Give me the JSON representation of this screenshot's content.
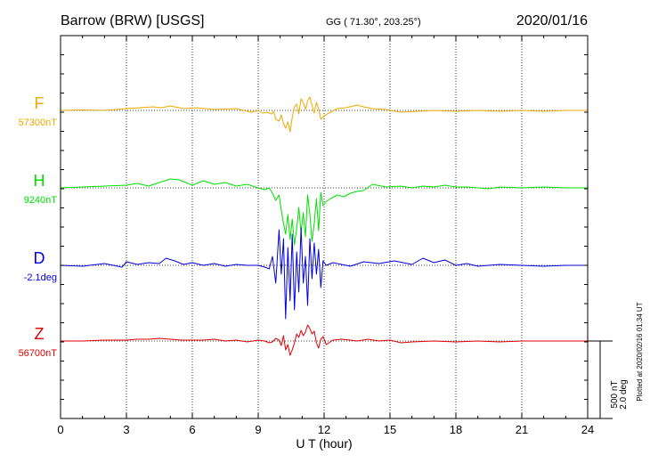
{
  "header": {
    "station": "Barrow (BRW)  [USGS]",
    "coords": "GG ( 71.30°, 203.25°)",
    "date": "2020/01/16"
  },
  "scale_note": {
    "line1": "500 nT",
    "line2": "2.0 deg"
  },
  "plotted_note": "Plotted at 2020/02/16 01:34 UT",
  "chart_data": {
    "type": "line",
    "title": "Barrow (BRW)  [USGS]",
    "xlabel": "U T (hour)",
    "ylabel": "",
    "xlim": [
      0,
      24
    ],
    "x_ticks": [
      "0",
      "3",
      "6",
      "9",
      "12",
      "15",
      "18",
      "21",
      "24"
    ],
    "grid": true,
    "series": [
      {
        "name": "F",
        "baseline_label": "57300nT",
        "color": "#f0a800",
        "x": [
          0,
          1,
          2,
          3,
          3.6,
          4.2,
          4.6,
          5,
          5.6,
          6.2,
          7,
          8,
          8.7,
          9,
          9.2,
          9.4,
          9.6,
          9.7,
          9.8,
          9.95,
          10.05,
          10.15,
          10.25,
          10.35,
          10.45,
          10.55,
          10.65,
          10.75,
          10.85,
          10.95,
          11.05,
          11.15,
          11.25,
          11.35,
          11.45,
          11.55,
          11.65,
          11.75,
          11.85,
          12,
          12.3,
          12.6,
          13,
          13.5,
          13.8,
          14.2,
          14.8,
          15.5,
          16.2,
          17,
          18,
          19,
          20,
          21,
          22,
          23,
          24
        ],
        "y": [
          0,
          0.5,
          0,
          2,
          3,
          4,
          3,
          5,
          2,
          3,
          1,
          2,
          -2,
          0,
          -3,
          -2,
          -4,
          -1,
          -10,
          -12,
          -5,
          -15,
          -20,
          -13,
          -24,
          -8,
          4,
          7,
          -4,
          13,
          9,
          1,
          11,
          15,
          6,
          -3,
          9,
          2,
          -10,
          -6,
          -2,
          2,
          3,
          6,
          4,
          2,
          1,
          -2,
          -1,
          0,
          -1,
          0,
          -1,
          0,
          -1,
          0,
          0
        ]
      },
      {
        "name": "H",
        "baseline_label": "9240nT",
        "color": "#00e000",
        "x": [
          0,
          1,
          2,
          3,
          3.5,
          4,
          4.5,
          5,
          5.4,
          6,
          6.5,
          7,
          7.5,
          8,
          8.5,
          9,
          9.3,
          9.5,
          9.65,
          9.8,
          9.95,
          10.05,
          10.15,
          10.25,
          10.35,
          10.45,
          10.55,
          10.65,
          10.75,
          10.85,
          10.95,
          11.05,
          11.15,
          11.25,
          11.35,
          11.45,
          11.55,
          11.65,
          11.75,
          11.85,
          11.95,
          12.1,
          12.3,
          12.6,
          12.9,
          13.2,
          13.5,
          13.8,
          14.2,
          14.8,
          15.5,
          16,
          16.5,
          17,
          17.5,
          18,
          18.5,
          19,
          19.5,
          20,
          21,
          22,
          23,
          24
        ],
        "y": [
          0,
          1,
          2,
          3,
          5,
          2,
          6,
          10,
          9,
          3,
          8,
          4,
          6,
          2,
          4,
          0,
          -2,
          0,
          -6,
          -14,
          -8,
          -25,
          -40,
          -52,
          -30,
          -58,
          -35,
          -64,
          -46,
          -22,
          -50,
          -28,
          -55,
          -8,
          -30,
          -60,
          -40,
          -12,
          -48,
          -5,
          -20,
          -15,
          -12,
          -8,
          -10,
          -6,
          -4,
          -3,
          4,
          1,
          2,
          0,
          2,
          1,
          3,
          1,
          1,
          0,
          -1,
          1,
          0,
          1,
          0,
          0
        ]
      },
      {
        "name": "D",
        "baseline_label": "-2.1deg",
        "color": "#0000dd",
        "x": [
          0,
          1,
          2,
          2.8,
          3,
          3.5,
          4,
          4.5,
          4.8,
          5.2,
          5.6,
          6,
          6.5,
          7,
          7.5,
          8,
          8.5,
          9,
          9.3,
          9.5,
          9.65,
          9.8,
          9.95,
          10.05,
          10.15,
          10.25,
          10.35,
          10.45,
          10.55,
          10.65,
          10.75,
          10.85,
          10.95,
          11.05,
          11.15,
          11.25,
          11.35,
          11.45,
          11.55,
          11.65,
          11.75,
          11.85,
          11.95,
          12.1,
          12.4,
          12.8,
          13.2,
          13.8,
          14.5,
          15.2,
          16,
          16.5,
          17,
          17.5,
          18,
          18.5,
          19,
          19.5,
          20,
          21,
          22,
          23,
          24
        ],
        "y": [
          0,
          -1,
          2,
          -2,
          4,
          1,
          3,
          2,
          8,
          5,
          1,
          3,
          0,
          2,
          -1,
          1,
          0,
          0,
          -2,
          -4,
          10,
          -20,
          40,
          -10,
          30,
          -60,
          20,
          -40,
          35,
          -50,
          15,
          -30,
          42,
          -20,
          10,
          -45,
          30,
          -15,
          25,
          -10,
          18,
          -25,
          5,
          0,
          3,
          1,
          -1,
          4,
          2,
          5,
          1,
          8,
          3,
          6,
          0,
          2,
          -1,
          0,
          1,
          0,
          -1,
          0,
          0
        ]
      },
      {
        "name": "Z",
        "baseline_label": "56700nT",
        "color": "#e00000",
        "x": [
          0,
          1,
          2,
          3,
          3.5,
          4,
          4.5,
          5,
          5.5,
          6,
          6.5,
          7,
          7.5,
          8,
          8.5,
          9,
          9.3,
          9.5,
          9.65,
          9.8,
          9.95,
          10.05,
          10.15,
          10.25,
          10.35,
          10.45,
          10.55,
          10.65,
          10.75,
          10.85,
          10.95,
          11.05,
          11.15,
          11.25,
          11.35,
          11.45,
          11.55,
          11.65,
          11.75,
          11.85,
          11.95,
          12.1,
          12.4,
          12.8,
          13.2,
          13.5,
          14,
          14.5,
          15,
          15.5,
          16,
          17,
          18,
          19,
          20,
          21,
          22,
          23,
          24
        ],
        "y": [
          0,
          0,
          1,
          1,
          2,
          2,
          3,
          2,
          1,
          1,
          1,
          2,
          0,
          1,
          -1,
          1,
          0,
          -2,
          -1,
          3,
          1,
          -5,
          6,
          -10,
          -4,
          -16,
          -10,
          -2,
          8,
          4,
          12,
          6,
          10,
          18,
          14,
          8,
          11,
          -2,
          -8,
          2,
          5,
          -4,
          1,
          2,
          1,
          0,
          2,
          0,
          1,
          -2,
          -1,
          0,
          -1,
          0,
          -1,
          0,
          0,
          0,
          0
        ]
      }
    ]
  }
}
